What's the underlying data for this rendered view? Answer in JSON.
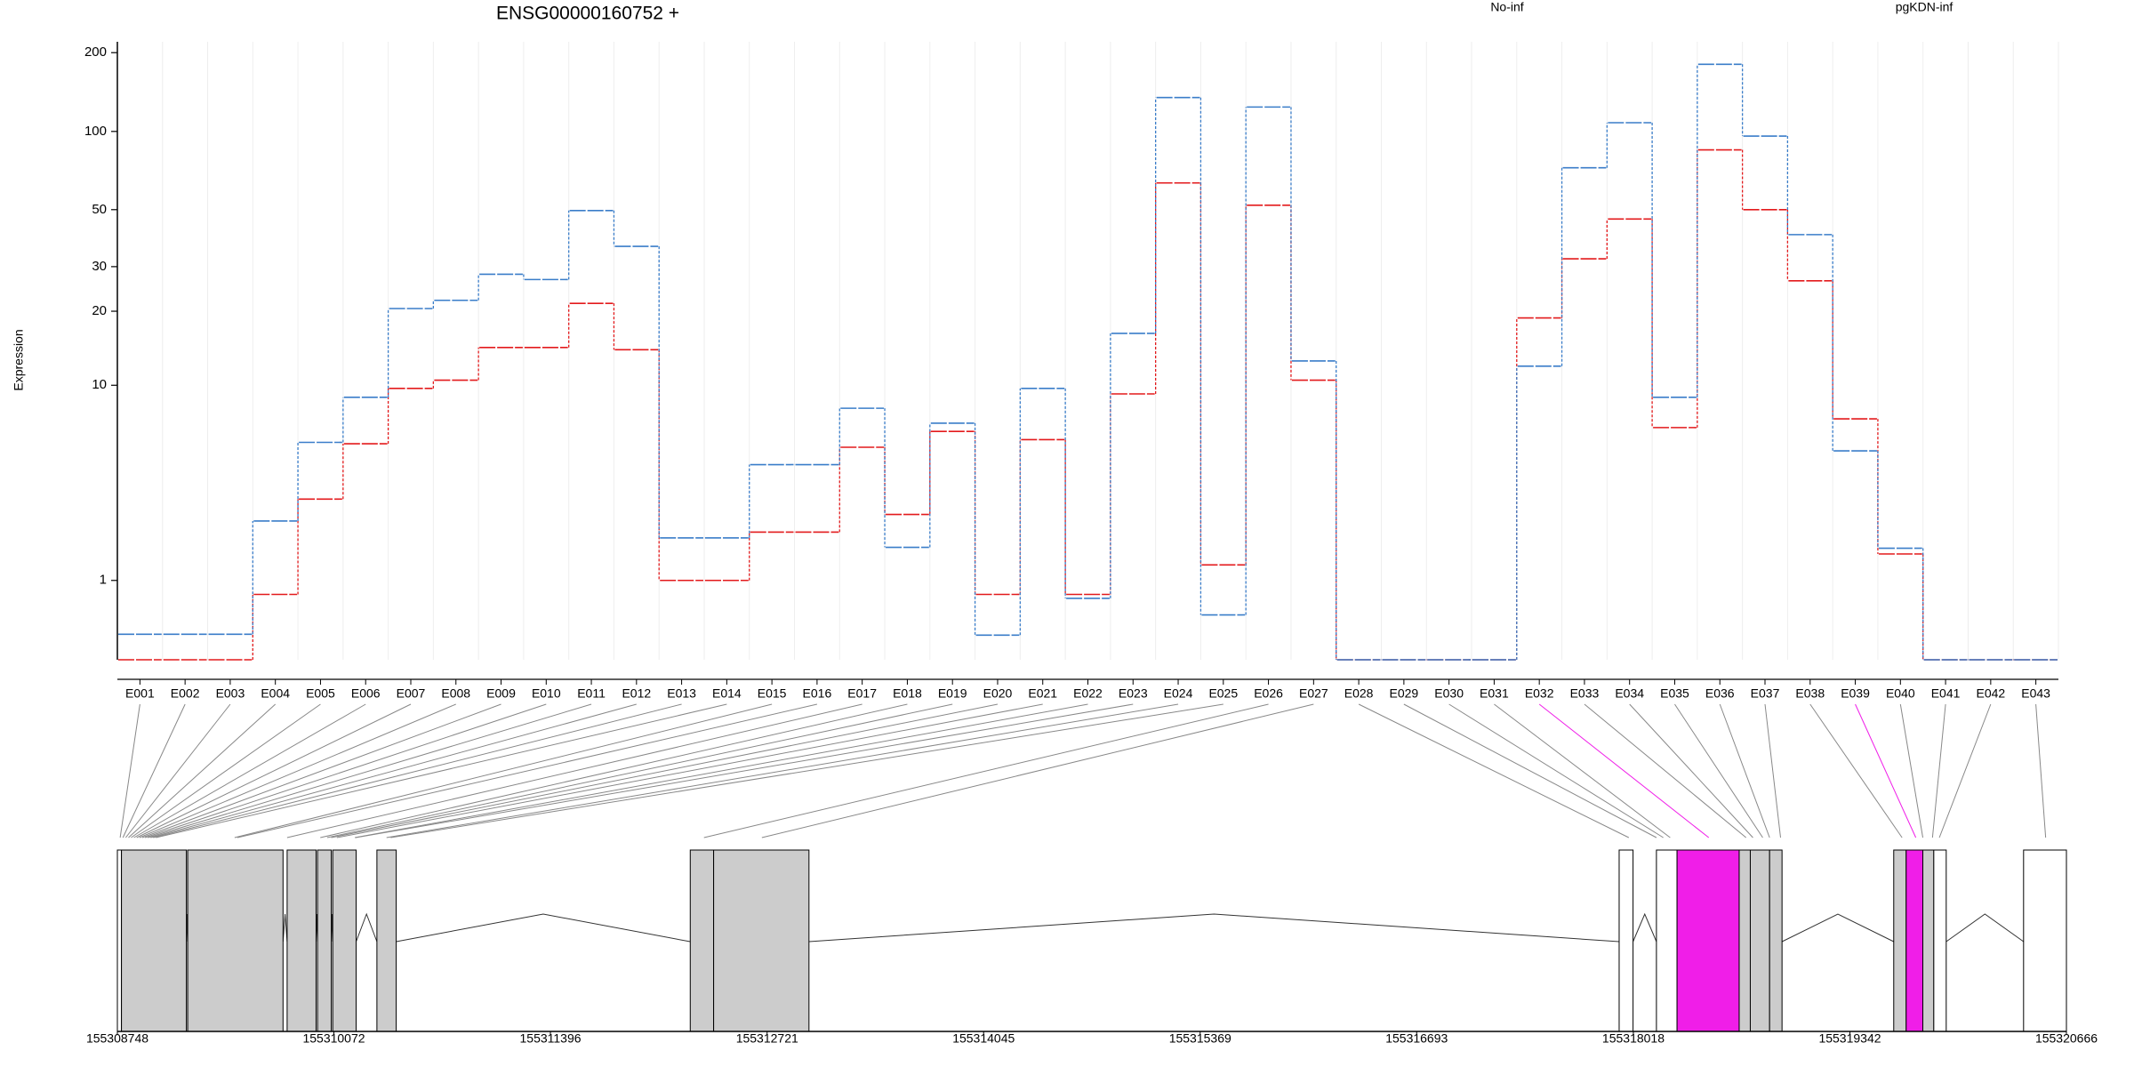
{
  "chart_data": [
    {
      "type": "step",
      "title": "ENSG00000160752 +",
      "y_label": "Expression",
      "yscale": "log1p",
      "ylim": [
        0,
        220
      ],
      "yticks": [
        1,
        10,
        20,
        30,
        50,
        100,
        200
      ],
      "grid": true,
      "legend": "top",
      "categories": [
        "E001",
        "E002",
        "E003",
        "E004",
        "E005",
        "E006",
        "E007",
        "E008",
        "E009",
        "E010",
        "E011",
        "E012",
        "E013",
        "E014",
        "E015",
        "E016",
        "E017",
        "E018",
        "E019",
        "E020",
        "E021",
        "E022",
        "E023",
        "E024",
        "E025",
        "E026",
        "E027",
        "E028",
        "E029",
        "E030",
        "E031",
        "E032",
        "E033",
        "E034",
        "E035",
        "E036",
        "E037",
        "E038",
        "E039",
        "E040",
        "E041",
        "E042",
        "E043"
      ],
      "series": [
        {
          "name": "No-inf",
          "color": "#e31a1c",
          "values": [
            0,
            0,
            0,
            0.77,
            3.07,
            5.6,
            9.7,
            10.5,
            14.3,
            14.3,
            21.5,
            14,
            1.0,
            1.0,
            2.05,
            2.05,
            5.4,
            2.56,
            6.35,
            0.77,
            5.84,
            0.77,
            9.2,
            63.4,
            1.29,
            52,
            10.5,
            0,
            0,
            0,
            0,
            18.8,
            32.2,
            46,
            6.6,
            85,
            50,
            26.4,
            7.2,
            1.52,
            0,
            0,
            0
          ]
        },
        {
          "name": "pgKDN-inf",
          "color": "#3a7dc9",
          "values": [
            0.25,
            0.25,
            0.25,
            2.36,
            5.68,
            8.9,
            20.5,
            22.1,
            28,
            26.7,
            49.6,
            36,
            1.9,
            1.9,
            4.5,
            4.5,
            8.0,
            1.67,
            6.9,
            0.24,
            9.7,
            0.71,
            16.3,
            134.8,
            0.48,
            124,
            12.6,
            0,
            0,
            0,
            0,
            12,
            72.5,
            108,
            8.9,
            180.6,
            96,
            40,
            5.2,
            1.65,
            0,
            0,
            0
          ]
        }
      ]
    },
    {
      "type": "gene-model",
      "xlim": [
        155308748,
        155320666
      ],
      "xticks": [
        155308748,
        155310072,
        155311396,
        155312721,
        155314045,
        155315369,
        155316693,
        155318018,
        155319342,
        155320666
      ],
      "highlight": {
        "color": "#f01ee8",
        "exons": [
          "E032",
          "E039"
        ]
      },
      "connector_color": "#888888",
      "exon_positions": [
        155308765,
        155308782,
        155308799,
        155308816,
        155308832,
        155308849,
        155308866,
        155308883,
        155308900,
        155308917,
        155308934,
        155308951,
        155308967,
        155308984,
        155309465,
        155309482,
        155309786,
        155309989,
        155310031,
        155310056,
        155310090,
        155310200,
        155310205,
        155310394,
        155310419,
        155312335,
        155312689,
        155317990,
        155318159,
        155318201,
        155318243,
        155318479,
        155318707,
        155318749,
        155318809,
        155318851,
        155318918,
        155319661,
        155319745,
        155319788,
        155319847,
        155319889,
        155320539
      ],
      "blocks": [
        {
          "start": 155308748,
          "end": 155308773,
          "color": "#ffffff"
        },
        {
          "start": 155308773,
          "end": 155309170,
          "color": "#cccccc"
        },
        {
          "start": 155309178,
          "end": 155309761,
          "color": "#cccccc"
        },
        {
          "start": 155309786,
          "end": 155309963,
          "color": "#cccccc"
        },
        {
          "start": 155309972,
          "end": 155310056,
          "color": "#cccccc"
        },
        {
          "start": 155310065,
          "end": 155310208,
          "color": "#cccccc"
        },
        {
          "start": 155310335,
          "end": 155310453,
          "color": "#cccccc"
        },
        {
          "start": 155312251,
          "end": 155312394,
          "color": "#cccccc"
        },
        {
          "start": 155312394,
          "end": 155312977,
          "color": "#cccccc"
        },
        {
          "start": 155317931,
          "end": 155318016,
          "color": "#ffffff"
        },
        {
          "start": 155318159,
          "end": 155318285,
          "color": "#ffffff"
        },
        {
          "start": 155318285,
          "end": 155318665,
          "color": "#f01ee8"
        },
        {
          "start": 155318665,
          "end": 155318733,
          "color": "#cccccc"
        },
        {
          "start": 155318733,
          "end": 155318851,
          "color": "#cccccc"
        },
        {
          "start": 155318851,
          "end": 155318927,
          "color": "#cccccc"
        },
        {
          "start": 155319610,
          "end": 155319686,
          "color": "#cccccc"
        },
        {
          "start": 155319686,
          "end": 155319788,
          "color": "#f01ee8"
        },
        {
          "start": 155319788,
          "end": 155319855,
          "color": "#cccccc"
        },
        {
          "start": 155319855,
          "end": 155319931,
          "color": "#ffffff"
        },
        {
          "start": 155320404,
          "end": 155320666,
          "color": "#ffffff"
        }
      ]
    }
  ]
}
